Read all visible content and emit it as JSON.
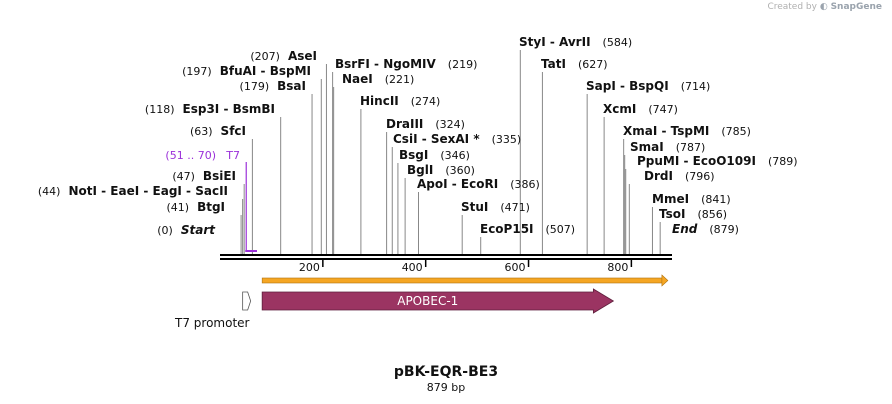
{
  "credit": {
    "prefix": "Created by",
    "brand": "SnapGene"
  },
  "plasmid": {
    "name": "pBK-EQR-BE3",
    "length_label": "879 bp",
    "length": 879
  },
  "sites": [
    {
      "label": "Start",
      "pos_label": "(0)",
      "pos": 0,
      "italic": true
    },
    {
      "label": "BtgI",
      "pos_label": "(41)",
      "pos": 41
    },
    {
      "label": "NotI - EaeI - EagI - SacII",
      "pos_label": "(44)",
      "pos": 44
    },
    {
      "label": "BsiEI",
      "pos_label": "(47)",
      "pos": 47
    },
    {
      "label": "SfcI",
      "pos_label": "(63)",
      "pos": 63
    },
    {
      "label": "Esp3I - BsmBI",
      "pos_label": "(118)",
      "pos": 118
    },
    {
      "label": "BsaI",
      "pos_label": "(179)",
      "pos": 179
    },
    {
      "label": "BfuAI - BspMI",
      "pos_label": "(197)",
      "pos": 197
    },
    {
      "label": "AseI",
      "pos_label": "(207)",
      "pos": 207
    },
    {
      "label": "BsrFI - NgoMIV",
      "pos_label": "(219)",
      "pos": 219
    },
    {
      "label": "NaeI",
      "pos_label": "(221)",
      "pos": 221
    },
    {
      "label": "HincII",
      "pos_label": "(274)",
      "pos": 274
    },
    {
      "label": "DraIII",
      "pos_label": "(324)",
      "pos": 324
    },
    {
      "label": "CsiI - SexAI *",
      "pos_label": "(335)",
      "pos": 335
    },
    {
      "label": "BsgI",
      "pos_label": "(346)",
      "pos": 346
    },
    {
      "label": "BglI",
      "pos_label": "(360)",
      "pos": 360
    },
    {
      "label": "ApoI - EcoRI",
      "pos_label": "(386)",
      "pos": 386
    },
    {
      "label": "StuI",
      "pos_label": "(471)",
      "pos": 471
    },
    {
      "label": "EcoP15I",
      "pos_label": "(507)",
      "pos": 507
    },
    {
      "label": "StyI - AvrII",
      "pos_label": "(584)",
      "pos": 584
    },
    {
      "label": "TatI",
      "pos_label": "(627)",
      "pos": 627
    },
    {
      "label": "SapI - BspQI",
      "pos_label": "(714)",
      "pos": 714
    },
    {
      "label": "XcmI",
      "pos_label": "(747)",
      "pos": 747
    },
    {
      "label": "XmaI - TspMI",
      "pos_label": "(785)",
      "pos": 785
    },
    {
      "label": "SmaI",
      "pos_label": "(787)",
      "pos": 787
    },
    {
      "label": "PpuMI - EcoO109I",
      "pos_label": "(789)",
      "pos": 789
    },
    {
      "label": "DrdI",
      "pos_label": "(796)",
      "pos": 796
    },
    {
      "label": "MmeI",
      "pos_label": "(841)",
      "pos": 841
    },
    {
      "label": "TsoI",
      "pos_label": "(856)",
      "pos": 856
    },
    {
      "label": "End",
      "pos_label": "(879)",
      "pos": 879,
      "italic": true
    }
  ],
  "primer": {
    "label": "T7",
    "range_label": "(51 .. 70)",
    "start": 51,
    "end": 70,
    "color": "#9b30d9"
  },
  "ruler": {
    "ticks": [
      200,
      400,
      600,
      800
    ]
  },
  "features": {
    "orf": {
      "start": 82,
      "end": 871,
      "color": "#f5a623"
    },
    "apobec": {
      "label": "APOBEC-1",
      "start": 82,
      "end": 765,
      "color": "#9b3462"
    },
    "t7_promoter": {
      "label": "T7 promoter",
      "start": 46,
      "end": 65
    }
  }
}
